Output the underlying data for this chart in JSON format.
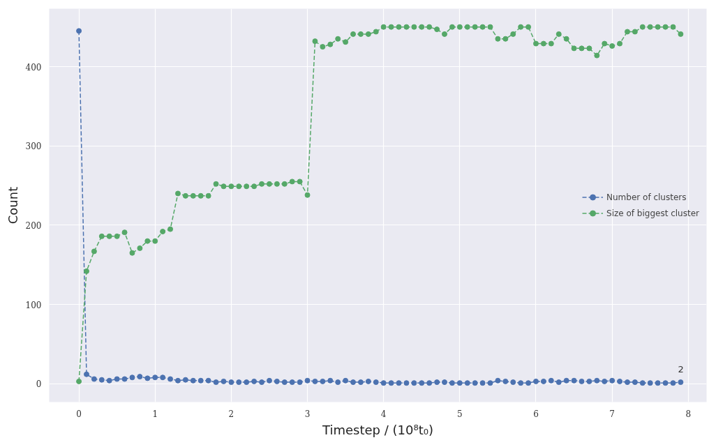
{
  "chart_data": {
    "type": "line",
    "xlabel": "Timestep / (10⁸t₀)",
    "ylabel": "Count",
    "x": [
      0,
      0.1,
      0.2,
      0.3,
      0.4,
      0.5,
      0.6,
      0.7,
      0.8,
      0.9,
      1.0,
      1.1,
      1.2,
      1.3,
      1.4,
      1.5,
      1.6,
      1.7,
      1.8,
      1.9,
      2.0,
      2.1,
      2.2,
      2.3,
      2.4,
      2.5,
      2.6,
      2.7,
      2.8,
      2.9,
      3.0,
      3.1,
      3.2,
      3.3,
      3.4,
      3.5,
      3.6,
      3.7,
      3.8,
      3.9,
      4.0,
      4.1,
      4.2,
      4.3,
      4.4,
      4.5,
      4.6,
      4.7,
      4.8,
      4.9,
      5.0,
      5.1,
      5.2,
      5.3,
      5.4,
      5.5,
      5.6,
      5.7,
      5.8,
      5.9,
      6.0,
      6.1,
      6.2,
      6.3,
      6.4,
      6.5,
      6.6,
      6.7,
      6.8,
      6.9,
      7.0,
      7.1,
      7.2,
      7.3,
      7.4,
      7.5,
      7.6,
      7.7,
      7.8,
      7.9
    ],
    "series": [
      {
        "name": "Number of clusters",
        "color": "#4c72b0",
        "values": [
          445,
          12,
          6,
          5,
          4,
          6,
          6,
          8,
          9,
          7,
          8,
          8,
          6,
          4,
          5,
          4,
          4,
          4,
          2,
          3,
          2,
          2,
          2,
          3,
          2,
          4,
          3,
          2,
          2,
          2,
          4,
          3,
          3,
          4,
          2,
          4,
          2,
          2,
          3,
          2,
          1,
          1,
          1,
          1,
          1,
          1,
          1,
          2,
          2,
          1,
          1,
          1,
          1,
          1,
          1,
          4,
          3,
          2,
          1,
          1,
          3,
          3,
          4,
          2,
          4,
          4,
          3,
          3,
          4,
          3,
          4,
          3,
          2,
          2,
          1,
          1,
          1,
          1,
          1,
          2
        ]
      },
      {
        "name": "Size of biggest cluster",
        "color": "#55a868",
        "values": [
          3,
          142,
          167,
          186,
          186,
          186,
          191,
          165,
          171,
          180,
          180,
          192,
          195,
          240,
          237,
          237,
          237,
          237,
          252,
          249,
          249,
          249,
          249,
          249,
          252,
          252,
          252,
          252,
          255,
          255,
          238,
          432,
          425,
          428,
          435,
          431,
          441,
          441,
          441,
          444,
          450,
          450,
          450,
          450,
          450,
          450,
          450,
          447,
          441,
          450,
          450,
          450,
          450,
          450,
          450,
          435,
          435,
          441,
          450,
          450,
          429,
          429,
          429,
          441,
          435,
          423,
          423,
          423,
          414,
          429,
          426,
          429,
          444,
          444,
          450,
          450,
          450,
          450,
          450,
          441
        ]
      }
    ],
    "annotations": [
      {
        "text": "2",
        "x": 7.9,
        "y": 2
      }
    ],
    "xlim": [
      -0.39,
      8.24
    ],
    "ylim": [
      -23,
      473
    ],
    "xticks": [
      0,
      1,
      2,
      3,
      4,
      5,
      6,
      7,
      8
    ],
    "yticks": [
      0,
      100,
      200,
      300,
      400
    ],
    "grid": true,
    "legend": "right",
    "marker": "circle",
    "line_style": "dashed"
  }
}
